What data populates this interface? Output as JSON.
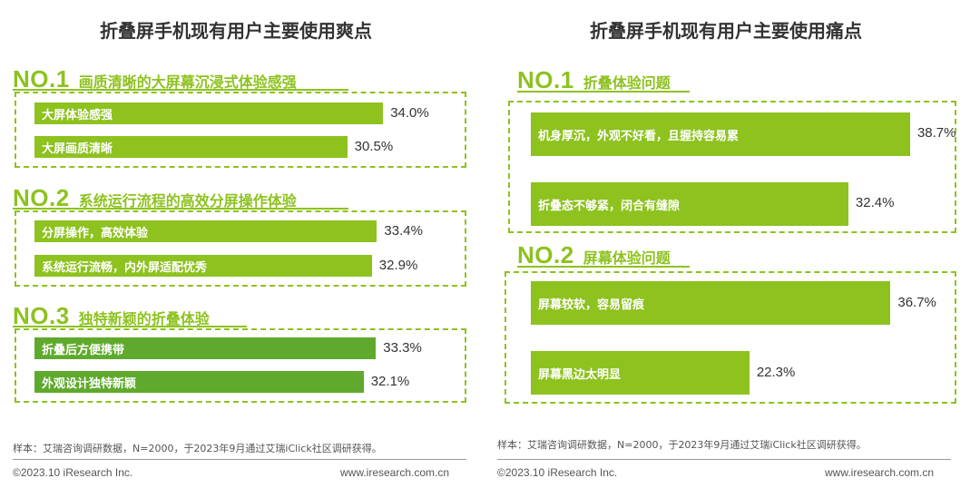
{
  "left": {
    "title": "折叠屏手机现有用户主要使用爽点",
    "groups": [
      {
        "no": "NO.1",
        "label": "画质清晰的大屏幕沉浸式体验感强",
        "items": [
          {
            "label": "大屏体验感强",
            "value": 34.0,
            "value_text": "34.0%"
          },
          {
            "label": "大屏画质清晰",
            "value": 30.5,
            "value_text": "30.5%"
          }
        ]
      },
      {
        "no": "NO.2",
        "label": "系统运行流程的高效分屏操作体验",
        "items": [
          {
            "label": "分屏操作，高效体验",
            "value": 33.4,
            "value_text": "33.4%"
          },
          {
            "label": "系统运行流畅，内外屏适配优秀",
            "value": 32.9,
            "value_text": "32.9%"
          }
        ]
      },
      {
        "no": "NO.3",
        "label": "独特新颖的折叠体验",
        "items": [
          {
            "label": "折叠后方便携带",
            "value": 33.3,
            "value_text": "33.3%"
          },
          {
            "label": "外观设计独特新颖",
            "value": 32.1,
            "value_text": "32.1%"
          }
        ]
      }
    ],
    "note": "样本：艾瑞咨询调研数据，N=2000，于2023年9月通过艾瑞iClick社区调研获得。",
    "copyright": "©2023.10 iResearch Inc.",
    "website": "www.iresearch.com.cn"
  },
  "right": {
    "title": "折叠屏手机现有用户主要使用痛点",
    "groups": [
      {
        "no": "NO.1",
        "label": "折叠体验问题",
        "items": [
          {
            "label": "机身厚沉，外观不好看，且握持容易累",
            "value": 38.7,
            "value_text": "38.7%"
          },
          {
            "label": "折叠态不够紧，闭合有缝隙",
            "value": 32.4,
            "value_text": "32.4%"
          }
        ]
      },
      {
        "no": "NO.2",
        "label": "屏幕体验问题",
        "items": [
          {
            "label": "屏幕较软，容易留痕",
            "value": 36.7,
            "value_text": "36.7%"
          },
          {
            "label": "屏幕黑边太明显",
            "value": 22.3,
            "value_text": "22.3%"
          }
        ]
      }
    ],
    "note": "样本：艾瑞咨询调研数据，N=2000，于2023年9月通过艾瑞iClick社区调研获得。",
    "copyright": "©2023.10 iResearch Inc.",
    "website": "www.iresearch.com.cn"
  },
  "colors": {
    "accent": "#8dc21f",
    "bar_light": "#8dc21f",
    "bar_dark": "#5faa2d"
  },
  "chart_data": [
    {
      "type": "bar",
      "title": "折叠屏手机现有用户主要使用爽点",
      "categories": [
        "大屏体验感强",
        "大屏画质清晰",
        "分屏操作，高效体验",
        "系统运行流畅，内外屏适配优秀",
        "折叠后方便携带",
        "外观设计独特新颖"
      ],
      "values": [
        34.0,
        30.5,
        33.4,
        32.9,
        33.3,
        32.1
      ],
      "unit": "%"
    },
    {
      "type": "bar",
      "title": "折叠屏手机现有用户主要使用痛点",
      "categories": [
        "机身厚沉，外观不好看，且握持容易累",
        "折叠态不够紧，闭合有缝隙",
        "屏幕较软，容易留痕",
        "屏幕黑边太明显"
      ],
      "values": [
        38.7,
        32.4,
        36.7,
        22.3
      ],
      "unit": "%"
    }
  ]
}
